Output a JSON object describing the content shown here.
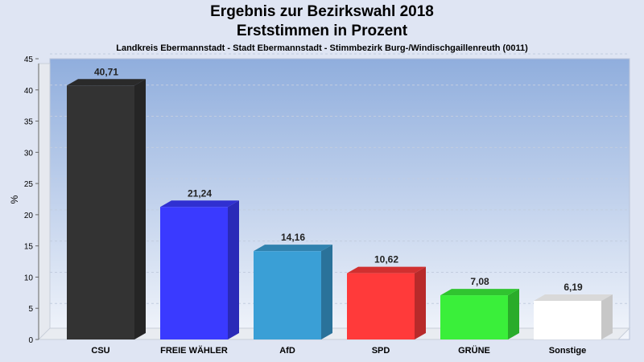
{
  "title": "Ergebnis zur Bezirkswahl 2018",
  "title2": "Erststimmen in Prozent",
  "subtitle": "Landkreis Ebermannstadt - Stadt Ebermannstadt - Stimmbezirk Burg-/Windischgaillenreuth (0011)",
  "chart_data": {
    "type": "bar",
    "categories": [
      "CSU",
      "FREIE WÄHLER",
      "AfD",
      "SPD",
      "GRÜNE",
      "Sonstige"
    ],
    "values": [
      40.71,
      21.24,
      14.16,
      10.62,
      7.08,
      6.19
    ],
    "value_labels": [
      "40,71",
      "21,24",
      "14,16",
      "10,62",
      "7,08",
      "6,19"
    ],
    "colors": [
      "#333333",
      "#3a3aff",
      "#3a9fd6",
      "#ff3a3a",
      "#3aef3a",
      "#ffffff"
    ],
    "ylabel": "%",
    "ylim": [
      0,
      45
    ],
    "yticks": [
      0,
      5,
      10,
      15,
      20,
      25,
      30,
      35,
      40,
      45
    ],
    "grid": true
  }
}
